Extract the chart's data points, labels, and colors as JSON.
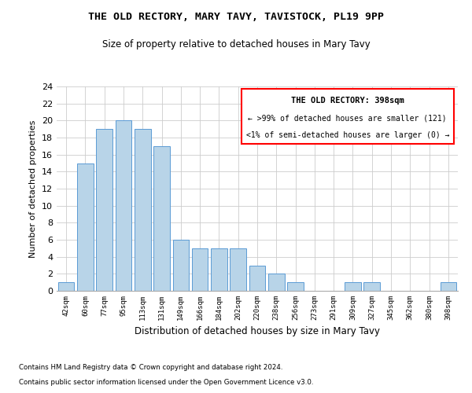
{
  "title": "THE OLD RECTORY, MARY TAVY, TAVISTOCK, PL19 9PP",
  "subtitle": "Size of property relative to detached houses in Mary Tavy",
  "xlabel": "Distribution of detached houses by size in Mary Tavy",
  "ylabel": "Number of detached properties",
  "categories": [
    "42sqm",
    "60sqm",
    "77sqm",
    "95sqm",
    "113sqm",
    "131sqm",
    "149sqm",
    "166sqm",
    "184sqm",
    "202sqm",
    "220sqm",
    "238sqm",
    "256sqm",
    "273sqm",
    "291sqm",
    "309sqm",
    "327sqm",
    "345sqm",
    "362sqm",
    "380sqm",
    "398sqm"
  ],
  "values": [
    1,
    15,
    19,
    20,
    19,
    17,
    6,
    5,
    5,
    5,
    3,
    2,
    1,
    0,
    0,
    1,
    1,
    0,
    0,
    0,
    1
  ],
  "bar_color": "#b8d4e8",
  "bar_edge_color": "#5b9bd5",
  "ylim": [
    0,
    24
  ],
  "yticks": [
    0,
    2,
    4,
    6,
    8,
    10,
    12,
    14,
    16,
    18,
    20,
    22,
    24
  ],
  "annotation_title": "THE OLD RECTORY: 398sqm",
  "annotation_line1": "← >99% of detached houses are smaller (121)",
  "annotation_line2": "<1% of semi-detached houses are larger (0) →",
  "footer_line1": "Contains HM Land Registry data © Crown copyright and database right 2024.",
  "footer_line2": "Contains public sector information licensed under the Open Government Licence v3.0.",
  "background_color": "#ffffff"
}
